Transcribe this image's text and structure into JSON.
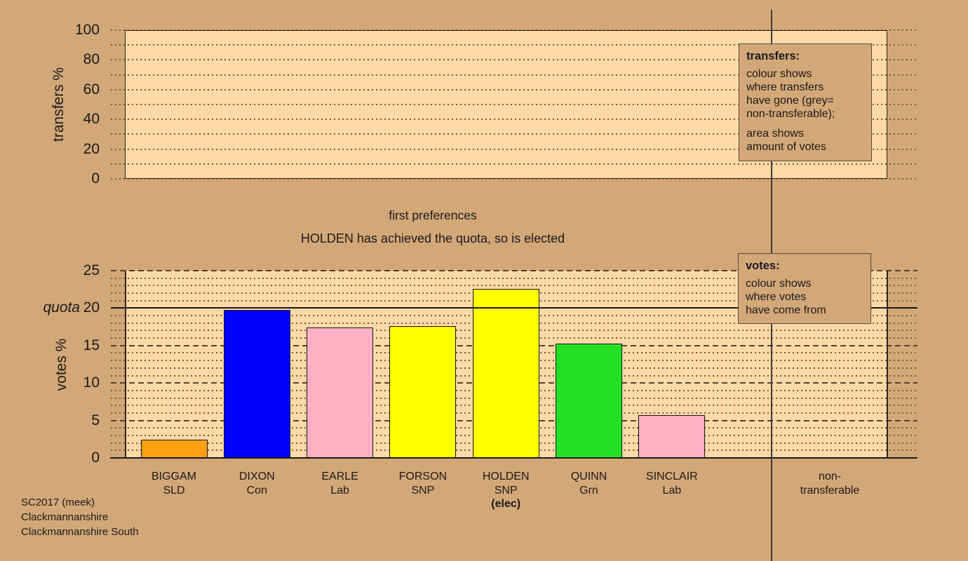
{
  "colors": {
    "background": "#D3A878",
    "plot_fill": "#FFD9A8",
    "ink": "#1A1A1A",
    "quota_line": "#1A1A1A",
    "party_SLD": "#FFA013",
    "party_Con": "#0000FF",
    "party_Lab": "#FFB1C3",
    "party_SNP": "#FFFF00",
    "party_Grn": "#22E022"
  },
  "titles": {
    "stage": "first preferences",
    "status": "HOLDEN has achieved the quota, so is elected"
  },
  "legend_transfers": {
    "title": "transfers:",
    "para1_lines": [
      "colour shows",
      "where transfers",
      "have gone (grey=",
      "non-transferable);"
    ],
    "para2_lines": [
      "area shows",
      "amount of votes"
    ]
  },
  "legend_votes": {
    "title": "votes:",
    "para1_lines": [
      "colour shows",
      "where votes",
      "have come from"
    ]
  },
  "quota_label": "quota",
  "footer_lines": [
    "SC2017 (meek)",
    "Clackmannanshire",
    "Clackmannanshire South"
  ],
  "chart_data": [
    {
      "type": "bar",
      "panel": "transfers",
      "ylabel": "transfers %",
      "ylim": [
        0,
        100
      ],
      "yticks": [
        0,
        20,
        40,
        60,
        80,
        100
      ],
      "minor_grid_step": 10,
      "grid": "dotted",
      "series": []
    },
    {
      "type": "bar",
      "panel": "votes",
      "ylabel": "votes %",
      "ylim": [
        0,
        25
      ],
      "yticks": [
        0,
        5,
        10,
        15,
        20,
        25
      ],
      "minor_grid_step": 1,
      "major_grid_step": 5,
      "quota": 20,
      "categories": [
        "BIGGAM",
        "DIXON",
        "EARLE",
        "FORSON",
        "HOLDEN",
        "QUINN",
        "SINCLAIR"
      ],
      "parties": [
        "SLD",
        "Con",
        "Lab",
        "SNP",
        "SNP",
        "Grn",
        "Lab"
      ],
      "notes": [
        "",
        "",
        "",
        "",
        "(elec)",
        "",
        ""
      ],
      "values": [
        2.4,
        19.8,
        17.4,
        17.6,
        22.6,
        15.3,
        5.7
      ],
      "bar_colors": [
        "#FFA013",
        "#0000FF",
        "#FFB1C3",
        "#FFFF00",
        "#FFFF00",
        "#22E022",
        "#FFB1C3"
      ],
      "extra_category_lines": [
        "non-",
        "transferable"
      ]
    }
  ]
}
